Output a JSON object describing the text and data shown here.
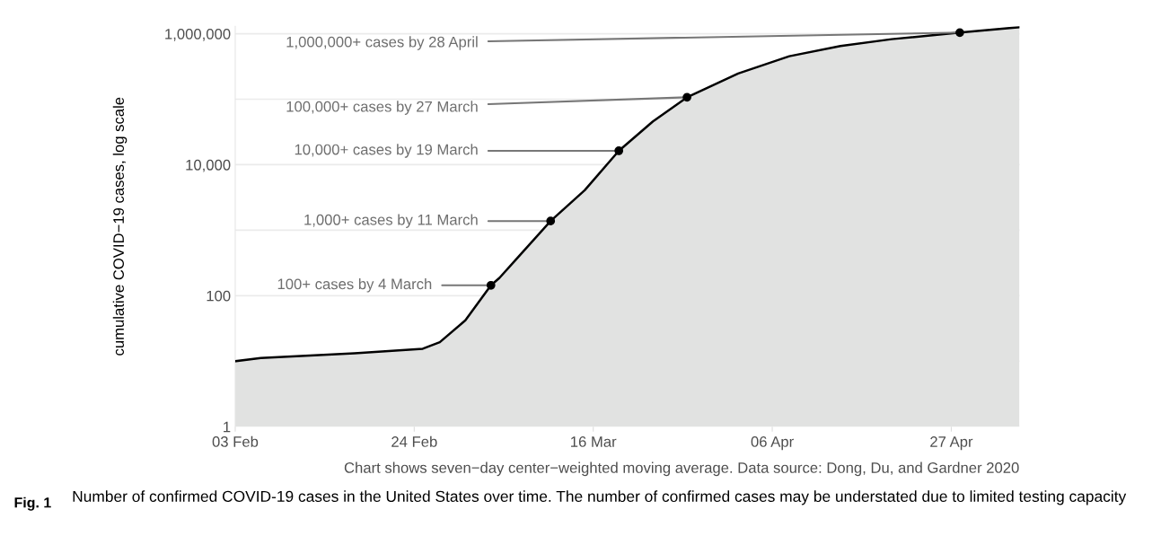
{
  "chart_data": {
    "type": "area",
    "ylabel": "cumulative COVID−19 cases, log scale",
    "x": [
      "2020-02-03",
      "2020-02-06",
      "2020-02-17",
      "2020-02-25",
      "2020-02-27",
      "2020-03-01",
      "2020-03-04",
      "2020-03-05",
      "2020-03-07",
      "2020-03-11",
      "2020-03-15",
      "2020-03-19",
      "2020-03-23",
      "2020-03-27",
      "2020-04-02",
      "2020-04-08",
      "2020-04-14",
      "2020-04-20",
      "2020-04-28",
      "2020-05-05"
    ],
    "series": [
      {
        "color": "#e1e2e1",
        "values": [
          10,
          11.2,
          13.2,
          15.5,
          19.5,
          42,
          144,
          187,
          365,
          1380,
          4070,
          16300,
          45700,
          107000,
          247000,
          453000,
          651000,
          826000,
          1040000,
          1260000
        ]
      }
    ],
    "log": "y",
    "grid": "y",
    "xlim": [
      "2020-02-03",
      "2020-05-05"
    ],
    "xticks": [
      {
        "value": "2020-02-03",
        "label": "03 Feb"
      },
      {
        "value": "2020-02-24",
        "label": "24 Feb"
      },
      {
        "value": "2020-03-16",
        "label": "16 Mar"
      },
      {
        "value": "2020-04-06",
        "label": "06 Apr"
      },
      {
        "value": "2020-04-27",
        "label": "27 Apr"
      }
    ],
    "ylim": [
      1,
      1300000
    ],
    "yticks": [
      {
        "value": 1,
        "label": "1"
      },
      {
        "value": 10,
        "label": null
      },
      {
        "value": 100,
        "label": "100"
      },
      {
        "value": 1000,
        "label": null
      },
      {
        "value": 10000,
        "label": "10,000"
      },
      {
        "value": 100000,
        "label": null
      },
      {
        "value": 1000000,
        "label": "1,000,000"
      }
    ],
    "annotations": [
      {
        "text": "100+ cases by 4 March",
        "x": "2020-03-04",
        "y": 144
      },
      {
        "text": "1,000+ cases by 11 March",
        "x": "2020-03-11",
        "y": 1380
      },
      {
        "text": "10,000+ cases by 19 March",
        "x": "2020-03-19",
        "y": 16300
      },
      {
        "text": "100,000+ cases by 27 March",
        "x": "2020-03-27",
        "y": 107000
      },
      {
        "text": "1,000,000+ cases by 28 April",
        "x": "2020-04-28",
        "y": 1040000
      },
      "Chart shows seven−day center−weighted moving average. Data source: Dong, Du, and Gardner 2020",
      "Fig. 1",
      "Number of confirmed COVID-19 cases in the United States over time. The number of confirmed cases may be understated due to limited testing capacity"
    ]
  }
}
